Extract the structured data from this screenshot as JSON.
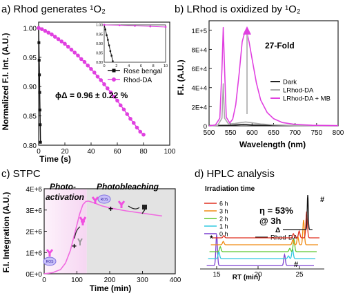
{
  "chart_data": [
    {
      "panel_label": "a)",
      "title": "Rhod generates ¹O₂",
      "type": "line",
      "xlabel": "Time (s)",
      "ylabel": "Normalized F.I. Int. (A.U.)",
      "xlim": [
        0,
        100
      ],
      "ylim": [
        0.8,
        1.01
      ],
      "xticks": [
        "0",
        "20",
        "40",
        "60",
        "80",
        "100"
      ],
      "yticks": [
        "0.80",
        "0.85",
        "0.90",
        "0.95",
        "1.00"
      ],
      "annotation": "ϕΔ = 0.96 ± 0.22 %",
      "legend": "inset-right",
      "series": [
        {
          "name": "Rose bengal",
          "color": "#111111",
          "x": [
            0,
            0.2,
            0.4,
            0.6,
            0.8,
            1.0,
            1.2,
            1.4
          ],
          "y": [
            1.0,
            0.975,
            0.945,
            0.92,
            0.89,
            0.86,
            0.835,
            0.805
          ]
        },
        {
          "name": "Rhod-DA",
          "color": "#e040e0",
          "x": [
            0,
            2.5,
            5,
            7.5,
            10,
            12.5,
            15,
            17.5,
            20,
            22.5,
            25,
            27.5,
            30,
            32.5,
            35,
            37.5,
            40,
            42.5,
            45,
            47.5,
            50,
            52.5,
            55,
            57.5,
            60,
            62.5,
            65,
            67.5,
            70,
            72.5,
            75,
            77.5,
            80
          ],
          "y": [
            1.0,
            0.998,
            0.995,
            0.992,
            0.989,
            0.985,
            0.981,
            0.977,
            0.973,
            0.968,
            0.963,
            0.958,
            0.953,
            0.947,
            0.942,
            0.936,
            0.93,
            0.924,
            0.917,
            0.911,
            0.904,
            0.897,
            0.89,
            0.883,
            0.876,
            0.868,
            0.861,
            0.853,
            0.845,
            0.838,
            0.83,
            0.823,
            0.818
          ]
        }
      ],
      "inset": {
        "xlim": [
          0,
          10
        ],
        "ylim": [
          0.8,
          1.0
        ],
        "xticks": [
          "0",
          "2",
          "4",
          "6",
          "8",
          "10"
        ],
        "yticks": [
          "0.80",
          "0.85",
          "0.90",
          "0.95",
          "1.00"
        ]
      }
    },
    {
      "panel_label": "b)",
      "title": "LRhod is oxidized by ¹O₂",
      "type": "line",
      "xlabel": "Wavelength (nm)",
      "ylabel": "F.I. (A.U.)",
      "xlim": [
        500,
        800
      ],
      "ylim": [
        0,
        110000
      ],
      "xticks": [
        "500",
        "550",
        "600",
        "650",
        "700",
        "750",
        "800"
      ],
      "yticks": [
        "0",
        "2E+4",
        "4E+4",
        "6E+4",
        "8E+4",
        "1E+5"
      ],
      "annotation": "27-Fold",
      "legend": "right",
      "series": [
        {
          "name": "Dark",
          "color": "#222222",
          "x": [
            500,
            550,
            580,
            600,
            650,
            800
          ],
          "y": [
            300,
            600,
            1500,
            900,
            400,
            150
          ]
        },
        {
          "name": "LRhod-DA",
          "color": "#aaaaaa",
          "x": [
            500,
            520,
            530,
            533,
            536,
            545,
            560,
            575,
            585,
            600,
            620,
            650,
            700,
            800
          ],
          "y": [
            0,
            500,
            8000,
            44000,
            8000,
            2000,
            2500,
            3500,
            4000,
            3200,
            2000,
            1000,
            400,
            100
          ]
        },
        {
          "name": "LRhod-DA + MB",
          "color": "#e040e0",
          "x": [
            500,
            515,
            525,
            530,
            533,
            536,
            540,
            548,
            555,
            562,
            570,
            577,
            583,
            588,
            593,
            600,
            610,
            620,
            635,
            650,
            670,
            700,
            740,
            800
          ],
          "y": [
            0,
            1000,
            8000,
            60000,
            103000,
            60000,
            9000,
            3000,
            7000,
            22000,
            55000,
            88000,
            98000,
            97000,
            88000,
            70000,
            45000,
            27000,
            14000,
            7500,
            3500,
            1500,
            600,
            200
          ]
        }
      ]
    },
    {
      "panel_label": "c)",
      "title": "STPC",
      "type": "line",
      "xlabel": "Time (min)",
      "ylabel": "F.I. Integration (A.U.)",
      "xlim": [
        0,
        400
      ],
      "ylim": [
        0,
        4000000
      ],
      "xticks": [
        "0",
        "100",
        "200",
        "300",
        "400"
      ],
      "yticks": [
        "0E+0",
        "1E+6",
        "2E+6",
        "3E+6",
        "4E+6"
      ],
      "regions": [
        {
          "label": "Photo-\nactivation",
          "x": [
            0,
            130
          ],
          "color": "#f6d6f2"
        },
        {
          "label": "Photobleaching",
          "x": [
            130,
            400
          ],
          "color": "#e3e3e3"
        }
      ],
      "icon_labels": [
        "ROS"
      ],
      "series": [
        {
          "name": "",
          "color": "#f06ae0",
          "x": [
            0,
            25,
            50,
            65,
            80,
            95,
            108,
            118,
            127,
            135,
            150,
            175,
            200,
            250,
            300,
            360
          ],
          "y": [
            0,
            50000,
            200000,
            500000,
            1100000,
            2000000,
            2800000,
            3250000,
            3400000,
            3420000,
            3350000,
            3200000,
            3100000,
            2960000,
            2850000,
            2720000
          ]
        }
      ]
    },
    {
      "panel_label": "d)",
      "title": "HPLC analysis",
      "type": "line",
      "xlabel": "RT (min)",
      "ylabel": "",
      "xlim": [
        13,
        28
      ],
      "xticks": [
        "15",
        "20",
        "25"
      ],
      "legend_title": "Irradiation time",
      "annotation": "η = 53%\n@ 3h",
      "peak_labels": [
        "#",
        "Δ",
        "*",
        "#"
      ],
      "series": [
        {
          "name": "6 h",
          "color": "#e03020",
          "peaks": [
            [
              15.2,
              0.08
            ],
            [
              23.6,
              0.15
            ],
            [
              24.3,
              0.25
            ],
            [
              25.2,
              0.95
            ]
          ]
        },
        {
          "name": "3 h",
          "color": "#f08a10",
          "peaks": [
            [
              15.3,
              0.12
            ],
            [
              23.7,
              0.18
            ],
            [
              24.3,
              0.3
            ],
            [
              25.0,
              0.9
            ]
          ]
        },
        {
          "name": "2 h",
          "color": "#5fc72f",
          "peaks": [
            [
              15.1,
              0.18
            ],
            [
              23.5,
              0.12
            ],
            [
              24.0,
              0.45
            ]
          ]
        },
        {
          "name": "1 h",
          "color": "#30c8e0",
          "peaks": [
            [
              15.1,
              0.25
            ],
            [
              23.5,
              0.1
            ],
            [
              24.0,
              0.35
            ]
          ]
        },
        {
          "name": "0 h",
          "color": "#7a3fd0",
          "peaks": [
            [
              15.0,
              1.0
            ],
            [
              23.2,
              0.35
            ]
          ]
        },
        {
          "name": "Rhod-DA",
          "color": "#111111",
          "peaks": [
            [
              26.0,
              1.0
            ]
          ]
        }
      ]
    }
  ]
}
